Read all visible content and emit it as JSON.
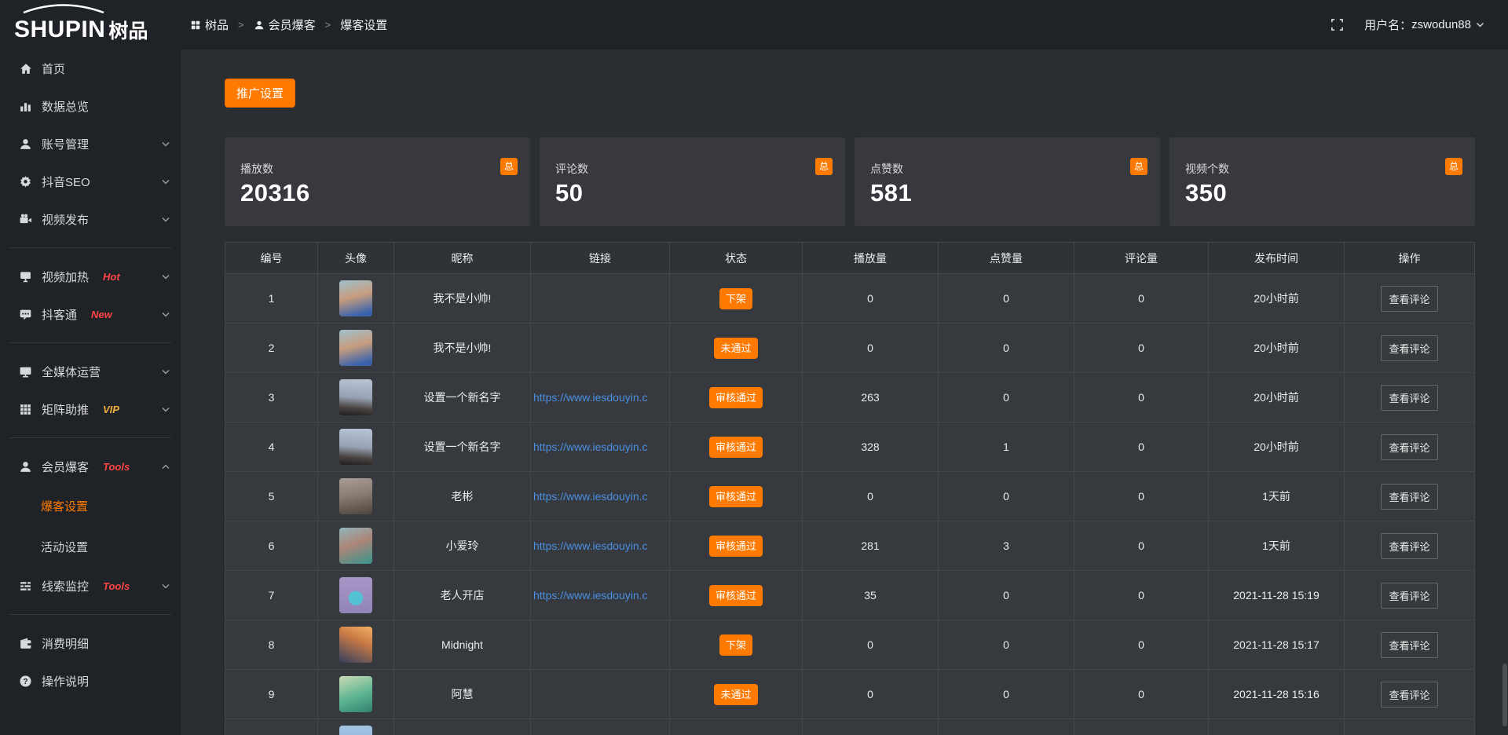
{
  "colors": {
    "accent": "#ff7a00",
    "link": "#4a8fe2",
    "tag_red": "#ff4545",
    "tag_vip": "#efad3a"
  },
  "logo": {
    "en": "SHUPIN",
    "cn": "树品"
  },
  "topbar": {
    "breadcrumb": [
      {
        "icon": "grid",
        "label": "树品"
      },
      {
        "icon": "user",
        "label": "会员爆客"
      },
      {
        "icon": "",
        "label": "爆客设置"
      }
    ],
    "separator": ">",
    "username_label": "用户名：",
    "username": "zswodun88"
  },
  "sidebar": {
    "items": [
      {
        "icon": "home",
        "label": "首页"
      },
      {
        "icon": "chart",
        "label": "数据总览"
      },
      {
        "icon": "user",
        "label": "账号管理",
        "chevron": "down"
      },
      {
        "icon": "gear",
        "label": "抖音SEO",
        "chevron": "down"
      },
      {
        "icon": "video",
        "label": "视频发布",
        "chevron": "down",
        "divider": true
      },
      {
        "icon": "heat",
        "label": "视频加热",
        "tag": "Hot",
        "tagColor": "#ff4545",
        "chevron": "down"
      },
      {
        "icon": "chat",
        "label": "抖客通",
        "tag": "New",
        "tagColor": "#ff4545",
        "chevron": "down",
        "divider": true
      },
      {
        "icon": "monitor",
        "label": "全媒体运营",
        "chevron": "down"
      },
      {
        "icon": "grid9",
        "label": "矩阵助推",
        "tag": "VIP",
        "tagColor": "#efad3a",
        "chevron": "down",
        "divider": true
      },
      {
        "icon": "user",
        "label": "会员爆客",
        "tag": "Tools",
        "tagColor": "#ff4545",
        "chevron": "up",
        "children": [
          {
            "label": "爆客设置",
            "active": true
          },
          {
            "label": "活动设置"
          }
        ]
      },
      {
        "icon": "sliders",
        "label": "线索监控",
        "tag": "Tools",
        "tagColor": "#ff4545",
        "chevron": "down",
        "divider": true
      },
      {
        "icon": "wallet",
        "label": "消费明细"
      },
      {
        "icon": "help",
        "label": "操作说明"
      }
    ]
  },
  "main": {
    "promo_button": "推广设置",
    "stat_cards": [
      {
        "label": "播放数",
        "value": "20316",
        "badge": "总"
      },
      {
        "label": "评论数",
        "value": "50",
        "badge": "总"
      },
      {
        "label": "点赞数",
        "value": "581",
        "badge": "总"
      },
      {
        "label": "视频个数",
        "value": "350",
        "badge": "总"
      }
    ],
    "table": {
      "headers": [
        "编号",
        "头像",
        "昵称",
        "链接",
        "状态",
        "播放量",
        "点赞量",
        "评论量",
        "发布时间",
        "操作"
      ],
      "action_label": "查看评论",
      "rows": [
        {
          "num": "1",
          "avatar": "linear-gradient(165deg,#9fc0cd 0%,#c79d7e 45%,#3b63ab 88%)",
          "name": "我不是小帅!",
          "link": "",
          "status": "下架",
          "plays": "0",
          "likes": "0",
          "comments": "0",
          "time": "20小时前",
          "action": true
        },
        {
          "num": "2",
          "avatar": "linear-gradient(165deg,#9fc0cd 0%,#c79d7e 45%,#3b63ab 88%)",
          "name": "我不是小帅!",
          "link": "",
          "status": "未通过",
          "plays": "0",
          "likes": "0",
          "comments": "0",
          "time": "20小时前",
          "action": true
        },
        {
          "num": "3",
          "avatar": "linear-gradient(185deg,#b9c6d6 0%,#97a2b4 50%,#4a4440 78%,#1f1d22 100%)",
          "name": "设置一个新名字",
          "link": "https://www.iesdouyin.c",
          "status": "审核通过",
          "plays": "263",
          "likes": "0",
          "comments": "0",
          "time": "20小时前",
          "action": true
        },
        {
          "num": "4",
          "avatar": "linear-gradient(185deg,#b9c6d6 0%,#97a2b4 50%,#4a4440 78%,#1f1d22 100%)",
          "name": "设置一个新名字",
          "link": "https://www.iesdouyin.c",
          "status": "审核通过",
          "plays": "328",
          "likes": "1",
          "comments": "0",
          "time": "20小时前",
          "action": true
        },
        {
          "num": "5",
          "avatar": "linear-gradient(170deg,#a99c94 0%,#8a7d74 45%,#4e443d 100%)",
          "name": "老彬",
          "link": "https://www.iesdouyin.c",
          "status": "审核通过",
          "plays": "0",
          "likes": "0",
          "comments": "0",
          "time": "1天前",
          "action": true
        },
        {
          "num": "6",
          "avatar": "linear-gradient(160deg,#8fb6bd 0%,#ad8577 45%,#37948e 100%)",
          "name": "小爱玲",
          "link": "https://www.iesdouyin.c",
          "status": "审核通过",
          "plays": "281",
          "likes": "3",
          "comments": "0",
          "time": "1天前",
          "action": true
        },
        {
          "num": "7",
          "avatar": "radial-gradient(circle at 50% 58%,#54c2d4 0 26%,rgba(0,0,0,0) 28%),linear-gradient(#a796c6,#9184b6)",
          "name": "老人开店",
          "link": "https://www.iesdouyin.c",
          "status": "审核通过",
          "plays": "35",
          "likes": "0",
          "comments": "0",
          "time": "2021-11-28 15:19",
          "action": true
        },
        {
          "num": "8",
          "avatar": "linear-gradient(205deg,#f2b266 0%,#cb7a45 38%,#31405e 100%)",
          "name": "Midnight",
          "link": "",
          "status": "下架",
          "plays": "0",
          "likes": "0",
          "comments": "0",
          "time": "2021-11-28 15:17",
          "action": true
        },
        {
          "num": "9",
          "avatar": "linear-gradient(160deg,#cadbb4 0%,#5cb491 55%,#31806f 100%)",
          "name": "阿慧",
          "link": "",
          "status": "未通过",
          "plays": "0",
          "likes": "0",
          "comments": "0",
          "time": "2021-11-28 15:16",
          "action": true
        },
        {
          "num": "",
          "avatar": "linear-gradient(#a3c4e2,#82acd6)",
          "name": "",
          "link": "",
          "status": "",
          "plays": "",
          "likes": "",
          "comments": "",
          "time": "",
          "action": false
        }
      ]
    }
  }
}
